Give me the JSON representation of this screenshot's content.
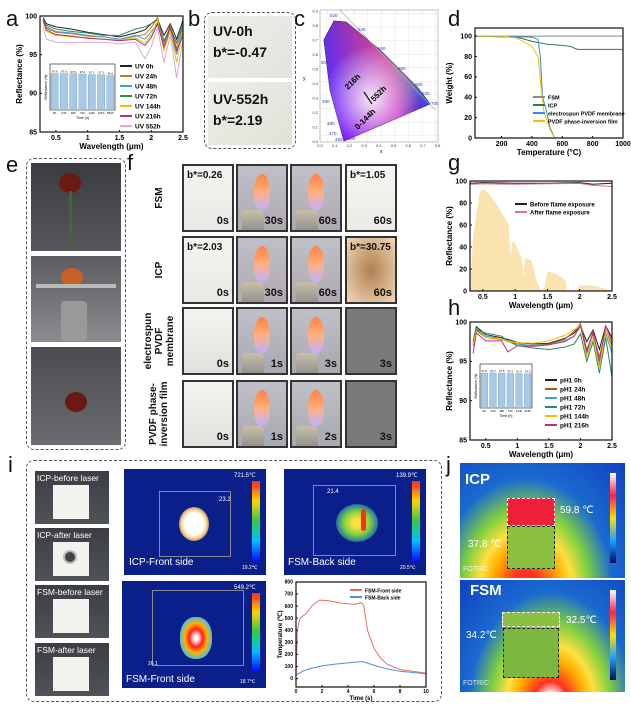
{
  "panel_labels": [
    "a",
    "b",
    "c",
    "d",
    "e",
    "f",
    "g",
    "h",
    "i",
    "j"
  ],
  "b": {
    "top_label": "UV-0h",
    "top_bstar": "b*=-0.47",
    "bottom_label": "UV-552h",
    "bottom_bstar": "b*=2.19"
  },
  "c": {
    "xlabel": "x",
    "ylabel": "y",
    "annotations": [
      "216h",
      "552h",
      "0-144h"
    ],
    "wavelengths": [
      "520",
      "540",
      "560",
      "580",
      "600",
      "620",
      "700",
      "500",
      "490",
      "480",
      "470",
      "460",
      "380"
    ],
    "xticks": [
      "0.0",
      "0.1",
      "0.2",
      "0.3",
      "0.4",
      "0.5",
      "0.6",
      "0.7",
      "0.8"
    ],
    "yticks": [
      "0.0",
      "0.1",
      "0.2",
      "0.3",
      "0.4",
      "0.5",
      "0.6",
      "0.7",
      "0.8",
      "0.9"
    ]
  },
  "f": {
    "rows": [
      {
        "label": "FSM",
        "cells": [
          {
            "time": "0s",
            "bstar": "b*=0.26"
          },
          {
            "time": "30s"
          },
          {
            "time": "60s"
          },
          {
            "time": "60s",
            "bstar": "b*=1.05"
          }
        ]
      },
      {
        "label": "ICP",
        "cells": [
          {
            "time": "0s",
            "bstar": "b*=2.03"
          },
          {
            "time": "30s"
          },
          {
            "time": "60s"
          },
          {
            "time": "60s",
            "bstar": "b*=30.75"
          }
        ]
      },
      {
        "label": "electrospun PVDF membrane",
        "cells": [
          {
            "time": "0s"
          },
          {
            "time": "1s"
          },
          {
            "time": "3s"
          },
          {
            "time": "3s"
          }
        ]
      },
      {
        "label": "PVDF phase-inversion film",
        "cells": [
          {
            "time": "0s"
          },
          {
            "time": "1s"
          },
          {
            "time": "2s"
          },
          {
            "time": "3s"
          }
        ]
      }
    ]
  },
  "i": {
    "photos": [
      "ICP-before laser",
      "ICP-after laser",
      "FSM-before laser",
      "FSM-after laser"
    ],
    "thermal": [
      {
        "label": "ICP-Front side",
        "max": "721.5℃",
        "min": "19.2℃",
        "point": "23.2"
      },
      {
        "label": "FSM-Back side",
        "max": "139.9℃",
        "min": "20.5℃",
        "point": "21.4"
      },
      {
        "label": "FSM-Front side",
        "max": "549.2℃",
        "min": "18.7℃",
        "point": "26.1"
      }
    ]
  },
  "j": {
    "icp": {
      "label": "ICP",
      "temp_top": "59.8 ℃",
      "temp_left": "37.8 ℃",
      "brand": "FOTRIC"
    },
    "fsm": {
      "label": "FSM",
      "temp_top": "32.5℃",
      "temp_left": "34.2℃",
      "brand": "FOTRIC"
    }
  },
  "chart_data": [
    {
      "id": "a",
      "type": "line",
      "xlabel": "Wavelength (μm)",
      "ylabel": "Reflectance (%)",
      "xlim": [
        0.25,
        2.5
      ],
      "ylim": [
        85,
        100
      ],
      "xticks": [
        0.5,
        1.0,
        1.5,
        2.0,
        2.5
      ],
      "yticks": [
        85,
        90,
        95,
        100
      ],
      "x": [
        0.3,
        0.35,
        0.5,
        0.75,
        1.0,
        1.25,
        1.5,
        1.75,
        1.9,
        2.0,
        2.1,
        2.2,
        2.3,
        2.4,
        2.5
      ],
      "series": [
        {
          "name": "UV 0h",
          "color": "#222222",
          "values": [
            99.8,
            99.0,
            98.6,
            98.3,
            97.9,
            97.6,
            97.3,
            97.8,
            98.2,
            99.0,
            99.6,
            97.5,
            99.0,
            97.0,
            99.5
          ]
        },
        {
          "name": "UV 24h",
          "color": "#c07a1a",
          "values": [
            99.5,
            98.4,
            97.9,
            97.7,
            97.4,
            97.3,
            97.0,
            97.4,
            97.6,
            98.5,
            99.8,
            96.5,
            98.8,
            95.8,
            99.0
          ]
        },
        {
          "name": "UV 48h",
          "color": "#3ba0d8",
          "values": [
            99.6,
            98.6,
            98.0,
            97.8,
            97.5,
            97.3,
            97.0,
            97.5,
            97.0,
            98.0,
            99.0,
            96.0,
            98.0,
            95.0,
            98.5
          ]
        },
        {
          "name": "UV 72h",
          "color": "#2a8a5a",
          "values": [
            99.6,
            98.8,
            98.3,
            98.0,
            97.8,
            97.5,
            97.5,
            98.3,
            98.6,
            99.0,
            99.5,
            96.8,
            98.5,
            96.5,
            99.0
          ]
        },
        {
          "name": "UV 144h",
          "color": "#f2c200",
          "values": [
            99.2,
            98.0,
            97.5,
            97.3,
            97.2,
            97.0,
            96.9,
            97.2,
            96.5,
            97.5,
            99.5,
            95.5,
            98.0,
            94.0,
            98.0
          ]
        },
        {
          "name": "UV 216h",
          "color": "#b0307a",
          "values": [
            99.4,
            98.2,
            97.6,
            97.4,
            97.1,
            97.0,
            96.8,
            97.0,
            96.2,
            97.2,
            99.0,
            96.0,
            98.5,
            95.5,
            97.5
          ]
        },
        {
          "name": "UV 552h",
          "color": "#d8a8e0",
          "values": [
            98.5,
            97.0,
            96.6,
            96.6,
            96.6,
            96.6,
            96.4,
            96.6,
            94.5,
            96.0,
            98.5,
            94.0,
            97.5,
            92.0,
            97.0
          ]
        }
      ],
      "inset": {
        "type": "bar",
        "xlabel": "Time (h)",
        "ylabel": "Reflectance (%)",
        "categories": [
          "0h",
          "24h",
          "48h",
          "72h",
          "144h",
          "216h",
          "552h"
        ],
        "values": [
          97.6,
          97.6,
          97.5,
          97.4,
          97.1,
          97.1,
          96.6
        ]
      }
    },
    {
      "id": "d",
      "type": "line",
      "xlabel": "Temperature (°C)",
      "ylabel": "Weight (%)",
      "xlim": [
        25,
        1000
      ],
      "ylim": [
        0,
        108
      ],
      "xticks": [
        200,
        400,
        600,
        800,
        1000
      ],
      "yticks": [
        0,
        20,
        40,
        60,
        80,
        100
      ],
      "series": [
        {
          "name": "FSM",
          "color": "#8a8a8a",
          "x": [
            25,
            1000
          ],
          "values": [
            100,
            100
          ]
        },
        {
          "name": "ICP",
          "color": "#2a7a5a",
          "x": [
            25,
            300,
            400,
            500,
            600,
            650,
            700,
            1000
          ],
          "values": [
            100,
            99,
            95,
            92,
            91,
            90,
            87,
            87
          ]
        },
        {
          "name": "electrospun PVDF membrane",
          "color": "#3a8ad0",
          "x": [
            25,
            400,
            440,
            455,
            470,
            490,
            520,
            550,
            1000
          ],
          "values": [
            100,
            99,
            97,
            80,
            40,
            30,
            10,
            0,
            0
          ]
        },
        {
          "name": "PVDF phase-inversion film",
          "color": "#f2c200",
          "x": [
            25,
            200,
            300,
            400,
            440,
            460,
            480,
            520,
            550,
            1000
          ],
          "values": [
            100,
            100,
            98,
            90,
            80,
            50,
            25,
            8,
            0,
            0
          ]
        }
      ]
    },
    {
      "id": "g",
      "type": "line",
      "xlabel": "Wavelength (μm)",
      "ylabel": "Reflectance (%)",
      "xlim": [
        0.3,
        2.5
      ],
      "ylim": [
        0,
        100
      ],
      "xticks": [
        0.5,
        1.0,
        1.5,
        2.0,
        2.5
      ],
      "yticks": [
        0,
        20,
        40,
        60,
        80,
        100
      ],
      "series": [
        {
          "name": "Before flame exposure",
          "color": "#222222",
          "x": [
            0.3,
            0.5,
            1.0,
            1.5,
            2.0,
            2.2,
            2.5
          ],
          "values": [
            98,
            98.5,
            98,
            98,
            98.5,
            97,
            98
          ]
        },
        {
          "name": "After flame exposure",
          "color": "#e07080",
          "x": [
            0.3,
            0.5,
            1.0,
            1.5,
            2.0,
            2.2,
            2.5
          ],
          "values": [
            97,
            97.5,
            97,
            97.5,
            97.8,
            96,
            95
          ]
        }
      ],
      "area": {
        "color": "#fbe3b0",
        "x": [
          0.3,
          0.35,
          0.45,
          0.5,
          0.6,
          0.7,
          0.9,
          0.93,
          0.95,
          1.0,
          1.1,
          1.13,
          1.15,
          1.25,
          1.33,
          1.4,
          1.45,
          1.5,
          1.65,
          1.78,
          1.8,
          1.95,
          2.0,
          2.2,
          2.4,
          2.5
        ],
        "values": [
          0,
          50,
          90,
          93,
          88,
          80,
          60,
          30,
          45,
          44,
          30,
          12,
          30,
          28,
          10,
          0,
          3,
          18,
          15,
          10,
          0,
          0,
          5,
          5,
          2,
          0
        ]
      }
    },
    {
      "id": "h",
      "type": "line",
      "xlabel": "Wavelength (μm)",
      "ylabel": "Reflectance (%)",
      "xlim": [
        0.25,
        2.5
      ],
      "ylim": [
        85,
        100
      ],
      "xticks": [
        0.5,
        1.0,
        1.5,
        2.0,
        2.5
      ],
      "yticks": [
        85,
        90,
        95,
        100
      ],
      "x": [
        0.3,
        0.35,
        0.5,
        0.75,
        0.85,
        1.0,
        1.25,
        1.5,
        1.75,
        1.9,
        2.0,
        2.1,
        2.2,
        2.3,
        2.4,
        2.5
      ],
      "series": [
        {
          "name": "pH1 0h",
          "color": "#222222",
          "values": [
            97.5,
            99.4,
            98.4,
            98.0,
            97.8,
            97.4,
            97.2,
            97.3,
            97.9,
            98.6,
            99.5,
            97.5,
            99.0,
            96.5,
            99.5,
            98.0
          ]
        },
        {
          "name": "pH1 24h",
          "color": "#a06010",
          "values": [
            97.0,
            99.0,
            98.0,
            97.8,
            97.5,
            97.2,
            97.0,
            97.2,
            97.8,
            98.8,
            99.8,
            96.5,
            98.5,
            95.5,
            99.0,
            97.0
          ]
        },
        {
          "name": "pH1 48h",
          "color": "#3ba0d8",
          "values": [
            97.2,
            99.2,
            98.2,
            97.9,
            97.6,
            97.2,
            97.0,
            97.1,
            97.6,
            98.2,
            99.5,
            96.0,
            98.0,
            94.5,
            98.5,
            96.0
          ]
        },
        {
          "name": "pH1 72h",
          "color": "#2a8a5a",
          "values": [
            97.6,
            99.0,
            98.6,
            98.2,
            97.6,
            97.0,
            96.7,
            96.5,
            96.8,
            97.2,
            98.5,
            95.0,
            97.5,
            93.5,
            98.0,
            93.0
          ]
        },
        {
          "name": "pH1 144h",
          "color": "#f2c200",
          "values": [
            97.2,
            98.8,
            98.0,
            97.9,
            97.5,
            97.4,
            97.3,
            97.6,
            98.3,
            99.0,
            99.6,
            95.5,
            98.0,
            94.0,
            99.0,
            96.5
          ]
        },
        {
          "name": "pH1 216h",
          "color": "#c03080",
          "values": [
            96.0,
            98.6,
            97.6,
            97.6,
            96.2,
            97.0,
            96.9,
            97.1,
            97.5,
            98.2,
            99.5,
            96.2,
            98.8,
            95.0,
            99.5,
            97.5
          ]
        }
      ],
      "inset": {
        "type": "bar",
        "xlabel": "Time (h)",
        "ylabel": "Reflectance (%)",
        "categories": [
          "0h",
          "24h",
          "48h",
          "72h",
          "144h",
          "216h"
        ],
        "values": [
          97.6,
          97.7,
          97.6,
          97.4,
          97.4,
          97.3
        ]
      }
    },
    {
      "id": "i",
      "type": "line",
      "xlabel": "Time (s)",
      "ylabel": "Temperature (℃)",
      "xlim": [
        0,
        10
      ],
      "ylim": [
        -70,
        800
      ],
      "xticks": [
        0,
        2,
        4,
        6,
        8,
        10
      ],
      "yticks": [
        0,
        100,
        200,
        300,
        400,
        500,
        600,
        700,
        800
      ],
      "series": [
        {
          "name": "FSM-Front side",
          "color": "#e07060",
          "x": [
            0,
            0.1,
            0.3,
            0.8,
            1.2,
            1.8,
            2.5,
            3.5,
            4.5,
            5.0,
            5.2,
            5.5,
            6.0,
            6.5,
            7.0,
            8.0,
            9.0,
            10.0
          ],
          "values": [
            30,
            400,
            500,
            540,
            600,
            650,
            645,
            625,
            615,
            630,
            610,
            400,
            250,
            170,
            120,
            75,
            60,
            45
          ]
        },
        {
          "name": "FSM-Back side",
          "color": "#4a90e0",
          "x": [
            0,
            0.5,
            1,
            2,
            3,
            4,
            5,
            5.3,
            6,
            7,
            8,
            9,
            10
          ],
          "values": [
            30,
            60,
            80,
            105,
            120,
            130,
            140,
            135,
            110,
            80,
            60,
            50,
            40
          ]
        }
      ]
    }
  ]
}
